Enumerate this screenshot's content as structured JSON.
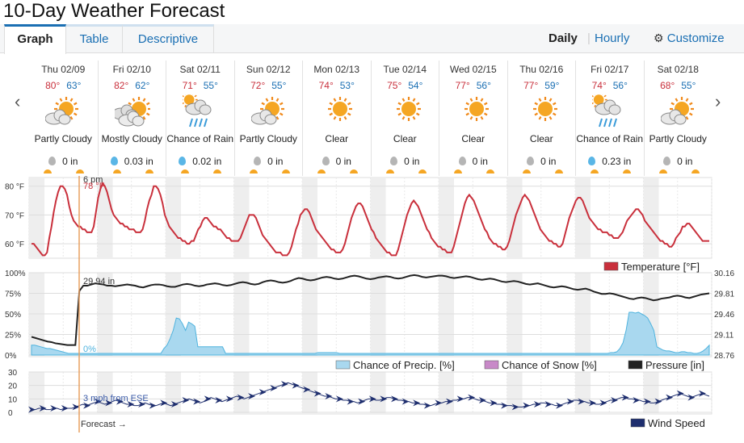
{
  "header": {
    "title": "10-Day Weather Forecast"
  },
  "tabs": [
    {
      "label": "Graph",
      "active": true
    },
    {
      "label": "Table",
      "active": false
    },
    {
      "label": "Descriptive",
      "active": false
    }
  ],
  "view_modes": {
    "daily": "Daily",
    "separator": "|",
    "hourly": "Hourly",
    "customize": "Customize"
  },
  "nav": {
    "prev": "‹",
    "next": "›"
  },
  "days": [
    {
      "date": "Thu 02/09",
      "hi": "80°",
      "lo": "63°",
      "icon": "partly-cloudy-icon",
      "cond": "Partly Cloudy",
      "precip": "0 in"
    },
    {
      "date": "Fri 02/10",
      "hi": "82°",
      "lo": "62°",
      "icon": "mostly-cloudy-icon",
      "cond": "Mostly Cloudy",
      "precip": "0.03 in"
    },
    {
      "date": "Sat 02/11",
      "hi": "71°",
      "lo": "55°",
      "icon": "chance-of-rain-icon",
      "cond": "Chance of Rain",
      "precip": "0.02 in"
    },
    {
      "date": "Sun 02/12",
      "hi": "72°",
      "lo": "55°",
      "icon": "partly-cloudy-icon",
      "cond": "Partly Cloudy",
      "precip": "0 in"
    },
    {
      "date": "Mon 02/13",
      "hi": "74°",
      "lo": "53°",
      "icon": "clear-sun-icon",
      "cond": "Clear",
      "precip": "0 in"
    },
    {
      "date": "Tue 02/14",
      "hi": "75°",
      "lo": "54°",
      "icon": "clear-sun-icon",
      "cond": "Clear",
      "precip": "0 in"
    },
    {
      "date": "Wed 02/15",
      "hi": "77°",
      "lo": "56°",
      "icon": "clear-sun-icon",
      "cond": "Clear",
      "precip": "0 in"
    },
    {
      "date": "Thu 02/16",
      "hi": "77°",
      "lo": "59°",
      "icon": "clear-sun-icon",
      "cond": "Clear",
      "precip": "0 in"
    },
    {
      "date": "Fri 02/17",
      "hi": "74°",
      "lo": "56°",
      "icon": "chance-of-rain-icon",
      "cond": "Chance of Rain",
      "precip": "0.23 in"
    },
    {
      "date": "Sat 02/18",
      "hi": "68°",
      "lo": "55°",
      "icon": "partly-cloudy-icon",
      "cond": "Partly Cloudy",
      "precip": "0 in"
    }
  ],
  "colors": {
    "temp": "#c9303c",
    "precip_fill": "#a9d8ef",
    "precip_line": "#4fb3de",
    "snow": "#c889c8",
    "pressure": "#222222",
    "wind": "#1e2e6e",
    "now_line": "#e8a060"
  },
  "cursor": {
    "time": "6 pm",
    "temp": "78 °F",
    "pressure": "29.94 in",
    "precip": "0%",
    "wind": "3 mph from ESE",
    "forecast_label": "Forecast →"
  },
  "chart_data": [
    {
      "type": "line",
      "title": "",
      "ylabel": "",
      "yticks": [
        "80 °F",
        "70 °F",
        "60 °F"
      ],
      "ylim": [
        55,
        83
      ],
      "series": [
        {
          "name": "Temperature [°F]",
          "values": [
            60,
            60,
            59,
            58,
            57,
            56,
            56,
            57,
            62,
            66,
            71,
            75,
            78,
            80,
            80,
            79,
            77,
            73,
            70,
            68,
            67,
            66,
            66,
            65,
            65,
            64,
            64,
            64,
            66,
            71,
            76,
            79,
            81,
            80,
            78,
            75,
            72,
            70,
            69,
            68,
            67,
            67,
            66,
            66,
            65,
            65,
            65,
            64,
            64,
            64,
            65,
            68,
            72,
            75,
            77,
            80,
            80,
            79,
            77,
            74,
            70,
            68,
            66,
            65,
            64,
            63,
            62,
            62,
            61,
            61,
            60,
            60,
            61,
            61,
            63,
            65,
            66,
            68,
            69,
            69,
            68,
            67,
            66,
            66,
            65,
            65,
            64,
            63,
            62,
            62,
            61,
            61,
            61,
            61,
            62,
            64,
            66,
            68,
            70,
            70,
            70,
            69,
            67,
            65,
            63,
            62,
            61,
            60,
            59,
            58,
            57,
            57,
            57,
            56,
            56,
            56,
            57,
            59,
            62,
            65,
            67,
            70,
            71,
            72,
            72,
            71,
            69,
            67,
            65,
            64,
            63,
            62,
            61,
            60,
            59,
            58,
            58,
            57,
            57,
            57,
            58,
            60,
            63,
            66,
            69,
            71,
            73,
            74,
            74,
            73,
            71,
            69,
            67,
            65,
            64,
            62,
            61,
            60,
            59,
            58,
            57,
            57,
            56,
            56,
            56,
            58,
            61,
            64,
            67,
            70,
            72,
            74,
            75,
            74,
            73,
            71,
            69,
            67,
            65,
            64,
            62,
            61,
            60,
            59,
            59,
            58,
            58,
            57,
            57,
            57,
            59,
            62,
            65,
            68,
            71,
            74,
            76,
            77,
            76,
            75,
            73,
            71,
            69,
            67,
            65,
            64,
            62,
            61,
            60,
            60,
            59,
            59,
            58,
            58,
            59,
            61,
            64,
            67,
            70,
            72,
            74,
            76,
            77,
            76,
            75,
            73,
            71,
            69,
            67,
            65,
            64,
            63,
            62,
            61,
            61,
            60,
            60,
            59,
            59,
            60,
            63,
            66,
            69,
            71,
            73,
            75,
            76,
            76,
            75,
            73,
            71,
            69,
            68,
            67,
            66,
            65,
            65,
            64,
            64,
            64,
            63,
            63,
            62,
            62,
            62,
            63,
            64,
            66,
            68,
            69,
            70,
            71,
            72,
            72,
            71,
            70,
            68,
            67,
            66,
            65,
            64,
            63,
            62,
            61,
            61,
            60,
            60,
            59,
            59,
            60,
            62,
            63,
            64,
            66,
            66,
            67,
            67,
            66,
            65,
            64,
            63,
            62,
            61,
            61,
            61,
            61
          ]
        }
      ],
      "bands": [
        "night",
        "day",
        "night",
        "day",
        "night",
        "day",
        "night",
        "day",
        "night",
        "day",
        "night",
        "day",
        "night",
        "day",
        "night",
        "day",
        "night",
        "day",
        "night",
        "day"
      ]
    },
    {
      "type": "area",
      "title": "",
      "yticks_left": [
        "100%",
        "75%",
        "50%",
        "25%",
        "0%"
      ],
      "yticks_right": [
        "30.16",
        "29.81",
        "29.46",
        "29.11",
        "28.76"
      ],
      "ylim_left": [
        0,
        100
      ],
      "ylim_right": [
        28.76,
        30.16
      ],
      "series": [
        {
          "name": "Chance of Precip. [%]",
          "values": [
            12,
            12,
            11,
            10,
            9,
            8,
            8,
            7,
            6,
            5,
            4,
            3,
            2,
            2,
            2,
            2,
            2,
            2,
            2,
            2,
            2,
            2,
            2,
            2,
            2,
            2,
            2,
            2,
            2,
            2,
            2,
            2,
            2,
            2,
            2,
            2,
            2,
            2,
            2,
            2,
            2,
            2,
            2,
            8,
            12,
            20,
            30,
            45,
            44,
            38,
            30,
            40,
            38,
            35,
            10,
            10,
            10,
            10,
            10,
            10,
            10,
            10,
            10,
            2,
            2,
            2,
            2,
            2,
            2,
            2,
            2,
            2,
            2,
            2,
            2,
            2,
            2,
            2,
            2,
            2,
            2,
            2,
            2,
            2,
            2,
            2,
            2,
            2,
            2,
            2,
            2,
            2,
            2,
            3,
            3,
            3,
            3,
            3,
            3,
            3,
            2,
            2,
            2,
            2,
            2,
            2,
            2,
            2,
            2,
            2,
            2,
            2,
            2,
            2,
            2,
            2,
            2,
            2,
            2,
            2,
            2,
            2,
            2,
            2,
            2,
            2,
            2,
            2,
            2,
            2,
            2,
            2,
            2,
            2,
            2,
            2,
            2,
            2,
            2,
            2,
            2,
            2,
            2,
            2,
            2,
            2,
            2,
            2,
            2,
            2,
            2,
            2,
            2,
            2,
            2,
            2,
            2,
            2,
            2,
            2,
            2,
            2,
            2,
            2,
            2,
            2,
            2,
            2,
            2,
            2,
            2,
            2,
            2,
            2,
            2,
            2,
            2,
            2,
            2,
            2,
            2,
            2,
            2,
            2,
            2,
            2,
            2,
            2,
            3,
            3,
            4,
            8,
            15,
            30,
            52,
            52,
            51,
            52,
            50,
            48,
            45,
            38,
            30,
            10,
            8,
            6,
            5,
            5,
            4,
            3,
            3,
            4,
            4,
            3,
            3,
            2,
            2,
            3,
            5,
            8,
            12
          ]
        },
        {
          "name": "Chance of Snow [%]",
          "values": []
        },
        {
          "name": "Pressure [in]",
          "values": [
            29.07,
            29.05,
            29.03,
            29.01,
            28.99,
            28.98,
            28.96,
            28.95,
            28.94,
            28.93,
            28.93,
            28.93,
            29.85,
            29.94,
            29.94,
            29.96,
            29.98,
            29.97,
            29.96,
            29.94,
            29.94,
            29.93,
            29.94,
            29.95,
            29.96,
            29.95,
            29.94,
            29.92,
            29.91,
            29.93,
            29.95,
            29.96,
            29.96,
            29.95,
            29.93,
            29.92,
            29.92,
            29.94,
            29.96,
            29.97,
            29.96,
            29.94,
            29.93,
            29.94,
            29.96,
            29.97,
            29.98,
            29.97,
            29.95,
            29.94,
            29.95,
            29.97,
            29.99,
            30.0,
            29.99,
            29.97,
            29.96,
            29.97,
            30.0,
            30.02,
            30.03,
            30.02,
            30.0,
            29.99,
            30.0,
            30.02,
            30.05,
            30.07,
            30.06,
            30.04,
            30.03,
            30.04,
            30.06,
            30.08,
            30.09,
            30.08,
            30.06,
            30.05,
            30.06,
            30.08,
            30.1,
            30.11,
            30.1,
            30.08,
            30.06,
            30.05,
            30.06,
            30.08,
            30.09,
            30.1,
            30.09,
            30.07,
            30.06,
            30.07,
            30.09,
            30.11,
            30.12,
            30.11,
            30.09,
            30.08,
            30.09,
            30.1,
            30.11,
            30.11,
            30.1,
            30.08,
            30.07,
            30.08,
            30.09,
            30.1,
            30.09,
            30.07,
            30.05,
            30.04,
            30.05,
            30.06,
            30.05,
            30.03,
            30.01,
            30.0,
            30.01,
            30.02,
            30.01,
            29.99,
            29.97,
            29.96,
            29.97,
            29.98,
            29.96,
            29.94,
            29.92,
            29.91,
            29.92,
            29.93,
            29.92,
            29.9,
            29.88,
            29.87,
            29.88,
            29.89,
            29.87,
            29.84,
            29.82,
            29.8,
            29.8,
            29.81,
            29.8,
            29.78,
            29.76,
            29.74,
            29.72,
            29.71,
            29.73,
            29.74,
            29.73,
            29.71,
            29.69,
            29.7,
            29.72,
            29.73,
            29.74,
            29.76,
            29.77,
            29.76,
            29.74,
            29.73,
            29.75,
            29.77,
            29.79,
            29.8,
            29.81
          ]
        }
      ]
    },
    {
      "type": "line",
      "title": "",
      "yticks": [
        "30",
        "20",
        "10",
        "0"
      ],
      "ylim": [
        0,
        30
      ],
      "series": [
        {
          "name": "Wind Speed",
          "values": [
            2,
            2,
            3,
            3,
            2,
            2,
            3,
            3,
            2,
            3,
            3,
            3,
            4,
            5,
            6,
            5,
            6,
            7,
            8,
            7,
            6,
            7,
            8,
            9,
            8,
            7,
            6,
            6,
            5,
            5,
            6,
            7,
            6,
            5,
            5,
            6,
            7,
            6,
            5,
            6,
            7,
            8,
            9,
            10,
            9,
            8,
            7,
            8,
            10,
            11,
            10,
            9,
            8,
            9,
            10,
            11,
            12,
            11,
            10,
            11,
            12,
            13,
            14,
            15,
            16,
            17,
            18,
            19,
            20,
            21,
            22,
            21,
            20,
            19,
            18,
            17,
            16,
            15,
            14,
            13,
            12,
            12,
            11,
            10,
            10,
            9,
            9,
            8,
            8,
            7,
            8,
            9,
            10,
            10,
            9,
            9,
            10,
            11,
            11,
            10,
            9,
            9,
            8,
            8,
            7,
            7,
            6,
            6,
            5,
            5,
            6,
            7,
            7,
            8,
            8,
            9,
            9,
            10,
            10,
            11,
            11,
            10,
            9,
            9,
            8,
            7,
            7,
            6,
            6,
            5,
            5,
            5,
            4,
            4,
            4,
            5,
            5,
            6,
            6,
            7,
            7,
            6,
            6,
            5,
            5,
            6,
            7,
            8,
            9,
            9,
            8,
            8,
            7,
            7,
            6,
            6,
            7,
            8,
            9,
            9,
            10,
            11,
            11,
            10,
            10,
            9,
            9,
            8,
            8,
            7,
            7,
            8,
            9,
            10,
            11,
            12,
            13,
            14,
            13,
            12,
            11,
            12,
            13,
            14,
            13,
            12
          ]
        }
      ]
    }
  ],
  "legends": {
    "temp": "Temperature [°F]",
    "precip": "Chance of Precip. [%]",
    "snow": "Chance of Snow [%]",
    "pressure": "Pressure [in]",
    "wind": "Wind Speed"
  }
}
